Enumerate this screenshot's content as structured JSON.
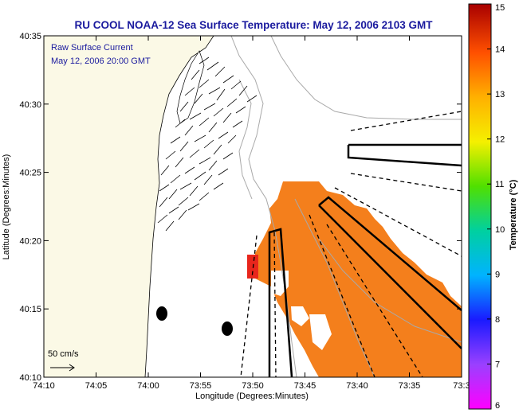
{
  "title": "RU COOL  NOAA-12  Sea Surface Temperature:  May 12, 2006 2103 GMT",
  "annotation": {
    "line1": "Raw Surface Current",
    "line2": "May 12, 2006 20:00 GMT"
  },
  "scale_label": "50 cm/s",
  "colors": {
    "title_text": "#1a1a9e",
    "land": "#fbf9e6",
    "sst_orange": "#f47f1c",
    "sst_red": "#e8261c",
    "contour": "#a9a9a9",
    "box_outline": "#000000"
  },
  "chart_data": {
    "type": "map",
    "xlabel": "Longitude (Degrees:Minutes)",
    "ylabel": "Latitude (Degrees:Minutes)",
    "x_ticks": [
      "74:10",
      "74:05",
      "74:00",
      "73:55",
      "73:50",
      "73:45",
      "73:40",
      "73:35",
      "73:3"
    ],
    "y_ticks": [
      "40:35",
      "40:30",
      "40:25",
      "40:20",
      "40:15",
      "40:10"
    ],
    "colorbar": {
      "label": "Temperature (°C)",
      "min": 6,
      "max": 15,
      "ticks": [
        "15",
        "14",
        "13",
        "12",
        "11",
        "10",
        "9",
        "8",
        "7",
        "6"
      ]
    }
  }
}
